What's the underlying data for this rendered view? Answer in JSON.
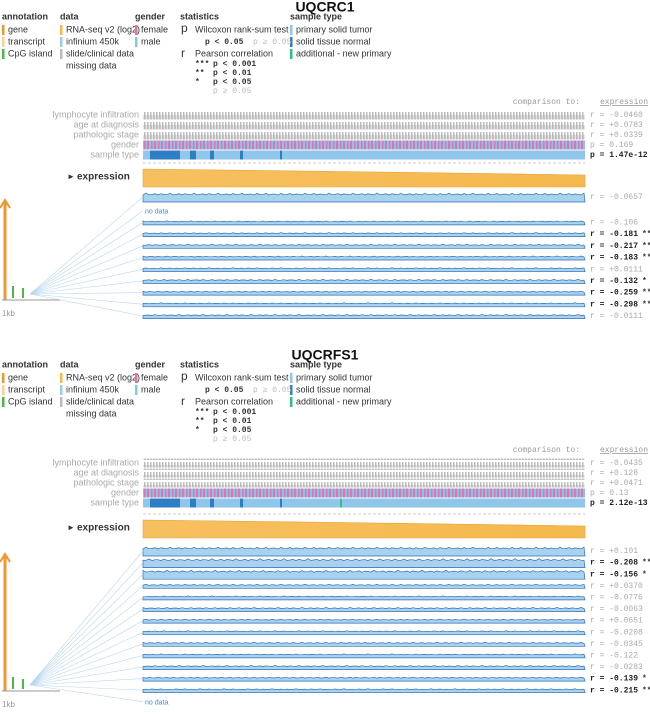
{
  "panels": [
    {
      "title": "UQCRC1",
      "legend": {
        "annotation": {
          "heading": "annotation",
          "items": [
            "gene",
            "transcript",
            "CpG island"
          ]
        },
        "data": {
          "heading": "data",
          "items": [
            "RNA-seq v2 (log2)",
            "infinium 450k",
            "slide/clinical data",
            "missing data"
          ]
        },
        "gender": {
          "heading": "gender",
          "items": [
            "female",
            "male"
          ]
        },
        "statistics": {
          "heading": "statistics",
          "wilcoxon_symbol": "p",
          "wilcoxon": "Wilcoxon rank-sum test",
          "wilcoxon_sig": "p < 0.05",
          "wilcoxon_nonsig": "p ≥ 0.05",
          "pearson_symbol": "r",
          "pearson": "Pearson correlation",
          "levels": [
            [
              "***",
              "p < 0.001"
            ],
            [
              "**",
              "p < 0.01"
            ],
            [
              "*",
              "p < 0.05"
            ]
          ],
          "pearson_nonsig": "p ≥ 0.05"
        },
        "sample_type": {
          "heading": "sample type",
          "items": [
            "primary solid tumor",
            "solid tissue normal",
            "additional - new primary"
          ]
        }
      },
      "comparison": "comparison to:",
      "comparison_target": "expression",
      "clinical_rows": [
        {
          "label": "lymphocyte infiltration",
          "stat": "r = -0.0460"
        },
        {
          "label": "age at diagnosis",
          "stat": "r = +0.0783"
        },
        {
          "label": "pathologic stage",
          "stat": "r = +0.0339"
        },
        {
          "label": "gender",
          "stat": "p = 0.169"
        },
        {
          "label": "sample type",
          "stat": "p = 1.47e-12",
          "significant": true
        }
      ],
      "expression_label": "expression",
      "scale_label": "1kb",
      "methylation_rows": [
        {
          "stat": "r = -0.0657"
        },
        {
          "note": "no data"
        },
        {
          "stat": "r = -0.106"
        },
        {
          "stat": "r = -0.181",
          "stars": "**",
          "significant": true
        },
        {
          "stat": "r = -0.217",
          "stars": "***",
          "significant": true
        },
        {
          "stat": "r = -0.183",
          "stars": "**",
          "significant": true
        },
        {
          "stat": "r = +0.0111"
        },
        {
          "stat": "r = -0.132",
          "stars": "*",
          "significant": true
        },
        {
          "stat": "r = -0.259",
          "stars": "***",
          "significant": true
        },
        {
          "stat": "r = -0.298",
          "stars": "***",
          "significant": true
        },
        {
          "stat": "r = -0.0111"
        }
      ]
    },
    {
      "title": "UQCRFS1",
      "legend": {
        "annotation": {
          "heading": "annotation",
          "items": [
            "gene",
            "transcript",
            "CpG island"
          ]
        },
        "data": {
          "heading": "data",
          "items": [
            "RNA-seq v2 (log2)",
            "infinium 450k",
            "slide/clinical data",
            "missing data"
          ]
        },
        "gender": {
          "heading": "gender",
          "items": [
            "female",
            "male"
          ]
        },
        "statistics": {
          "heading": "statistics",
          "wilcoxon_symbol": "p",
          "wilcoxon": "Wilcoxon rank-sum test",
          "wilcoxon_sig": "p < 0.05",
          "wilcoxon_nonsig": "p ≥ 0.05",
          "pearson_symbol": "r",
          "pearson": "Pearson correlation",
          "levels": [
            [
              "***",
              "p < 0.001"
            ],
            [
              "**",
              "p < 0.01"
            ],
            [
              "*",
              "p < 0.05"
            ]
          ],
          "pearson_nonsig": "p ≥ 0.05"
        },
        "sample_type": {
          "heading": "sample type",
          "items": [
            "primary solid tumor",
            "solid tissue normal",
            "additional - new primary"
          ]
        }
      },
      "comparison": "comparison to:",
      "comparison_target": "expression",
      "clinical_rows": [
        {
          "label": "lymphocyte infiltration",
          "stat": "r = -0.0435"
        },
        {
          "label": "age at diagnosis",
          "stat": "r = +0.128"
        },
        {
          "label": "pathologic stage",
          "stat": "r = +0.0471"
        },
        {
          "label": "gender",
          "stat": "p = 0.13"
        },
        {
          "label": "sample type",
          "stat": "p = 2.12e-13",
          "significant": true
        }
      ],
      "expression_label": "expression",
      "scale_label": "1kb",
      "methylation_rows": [
        {
          "stat": "r = +0.101"
        },
        {
          "stat": "r = -0.208",
          "stars": "***",
          "significant": true
        },
        {
          "stat": "r = -0.156",
          "stars": "*",
          "significant": true
        },
        {
          "stat": "r = +0.0370"
        },
        {
          "stat": "r = -0.0776"
        },
        {
          "stat": "r = -0.0063"
        },
        {
          "stat": "r = +0.0651"
        },
        {
          "stat": "r = -0.0208"
        },
        {
          "stat": "r = -0.0345"
        },
        {
          "stat": "r = -0.122"
        },
        {
          "stat": "r = -0.0283"
        },
        {
          "stat": "r = -0.139",
          "stars": "*",
          "significant": true
        },
        {
          "stat": "r = -0.215",
          "stars": "***",
          "significant": true
        },
        {
          "note": "no data"
        }
      ]
    }
  ]
}
